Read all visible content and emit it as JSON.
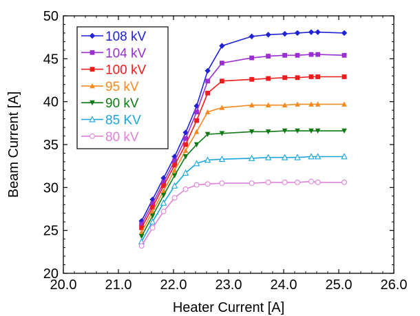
{
  "chart_data": {
    "type": "line",
    "xlabel": "Heater Current [A]",
    "ylabel": "Beam Current [A]",
    "xlim": [
      20.0,
      26.0
    ],
    "ylim": [
      20,
      50
    ],
    "xticks": [
      "20.0",
      "21.0",
      "22.0",
      "23.0",
      "24.0",
      "25.0",
      "26.0"
    ],
    "yticks": [
      "20",
      "25",
      "30",
      "35",
      "40",
      "45",
      "50"
    ],
    "grid": false,
    "legend_position": "top-left",
    "x": [
      21.42,
      21.62,
      21.82,
      22.02,
      22.22,
      22.42,
      22.62,
      22.88,
      23.42,
      23.72,
      24.02,
      24.25,
      24.5,
      24.62,
      25.1
    ],
    "series": [
      {
        "name": "108 kV",
        "color": "#1f22d6",
        "marker": "diamond",
        "values": [
          26.1,
          28.6,
          31.1,
          33.6,
          36.4,
          39.5,
          43.6,
          46.5,
          47.6,
          47.8,
          47.9,
          48.0,
          48.1,
          48.1,
          48.0
        ]
      },
      {
        "name": "104 kV",
        "color": "#9b2fd1",
        "marker": "square",
        "values": [
          25.7,
          28.1,
          30.6,
          33.1,
          35.7,
          38.8,
          42.4,
          44.5,
          45.1,
          45.3,
          45.4,
          45.4,
          45.5,
          45.5,
          45.4
        ]
      },
      {
        "name": "100 kV",
        "color": "#ee1c1c",
        "marker": "square",
        "values": [
          25.3,
          27.7,
          30.2,
          32.6,
          35.0,
          37.8,
          41.0,
          42.4,
          42.6,
          42.7,
          42.8,
          42.8,
          42.9,
          42.9,
          42.9
        ]
      },
      {
        "name": "95 kV",
        "color": "#f4891f",
        "marker": "triangle-up",
        "values": [
          24.8,
          27.2,
          29.6,
          32.0,
          34.3,
          36.5,
          38.8,
          39.3,
          39.6,
          39.6,
          39.6,
          39.7,
          39.7,
          39.7,
          39.7
        ]
      },
      {
        "name": "90 kV",
        "color": "#0f7a14",
        "marker": "triangle-down",
        "values": [
          24.3,
          26.7,
          29.1,
          31.4,
          33.6,
          35.0,
          36.2,
          36.3,
          36.5,
          36.5,
          36.6,
          36.6,
          36.6,
          36.6,
          36.6
        ]
      },
      {
        "name": "85 KV",
        "color": "#18a5dc",
        "marker": "triangle-up-open",
        "values": [
          23.7,
          26.0,
          28.2,
          30.2,
          31.7,
          32.8,
          33.2,
          33.3,
          33.4,
          33.5,
          33.5,
          33.5,
          33.6,
          33.6,
          33.6
        ]
      },
      {
        "name": "80 kV",
        "color": "#de82d8",
        "marker": "circle-open",
        "values": [
          23.2,
          25.3,
          27.2,
          28.8,
          29.8,
          30.3,
          30.4,
          30.5,
          30.5,
          30.6,
          30.6,
          30.6,
          30.7,
          30.6,
          30.6
        ]
      }
    ]
  }
}
